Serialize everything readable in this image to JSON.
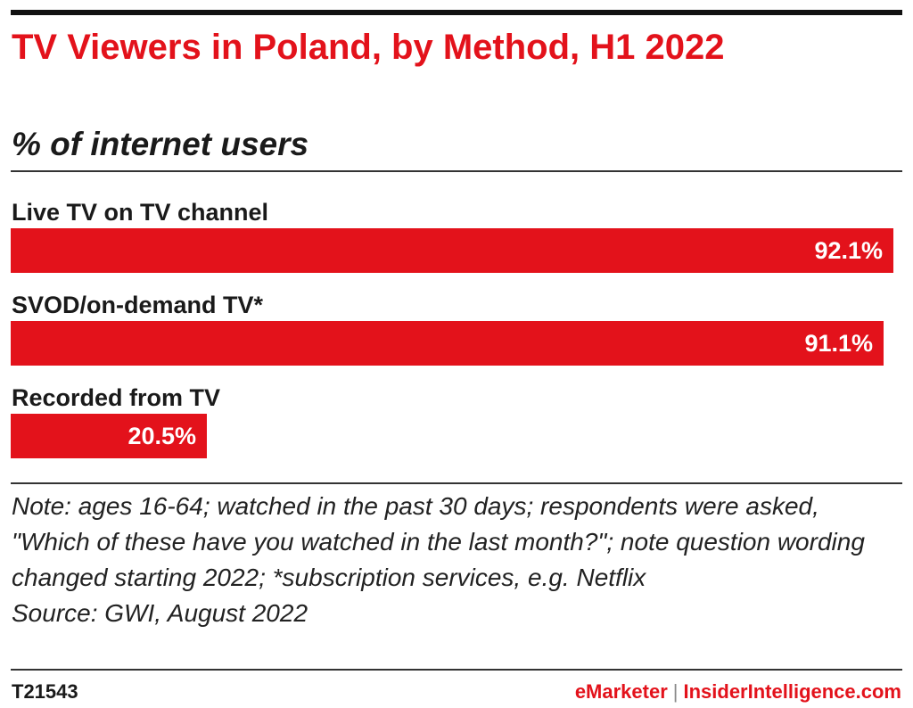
{
  "colors": {
    "accent": "#e3121b",
    "text": "#1a1a1a",
    "rule": "#111111"
  },
  "header": {
    "title": "TV Viewers in Poland, by Method, H1 2022",
    "subtitle": "% of internet users"
  },
  "chart_data": {
    "type": "bar",
    "orientation": "horizontal",
    "title": "TV Viewers in Poland, by Method, H1 2022",
    "subtitle": "% of internet users",
    "categories": [
      "Live TV on TV channel",
      "SVOD/on-demand TV*",
      "Recorded from TV"
    ],
    "values": [
      92.1,
      91.1,
      20.5
    ],
    "value_labels": [
      "92.1%",
      "91.1%",
      "20.5%"
    ],
    "xlim": [
      0,
      92.1
    ],
    "grid": false,
    "legend": "none",
    "bar_color": "#e3121b"
  },
  "notes": {
    "lines": [
      "Note: ages 16-64; watched in the past 30 days; respondents were asked, \"Which of these have you watched in the last month?\"; note question wording changed starting 2022; *subscription services, e.g. Netflix",
      "Source: GWI, August 2022"
    ]
  },
  "footer": {
    "id": "T21543",
    "brand_left": "eMarketer",
    "separator": "|",
    "brand_right": "InsiderIntelligence.com"
  }
}
